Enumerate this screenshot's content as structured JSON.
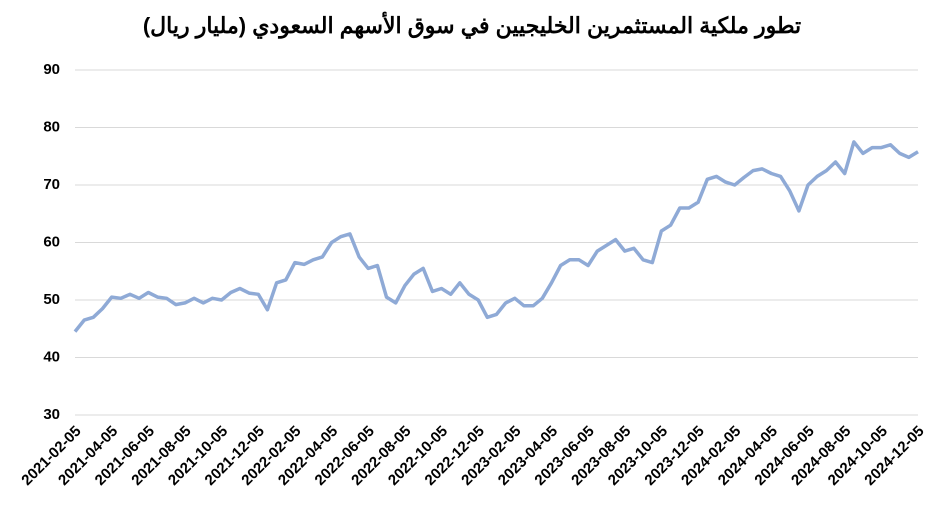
{
  "chart_data": {
    "type": "line",
    "title": "تطور ملكية المستثمرين الخليجيين في سوق الأسهم السعودي (مليار ريال)",
    "categories": [
      "2021-02-05",
      null,
      null,
      null,
      "2021-04-05",
      null,
      null,
      null,
      "2021-06-05",
      null,
      null,
      null,
      "2021-08-05",
      null,
      null,
      null,
      "2021-10-05",
      null,
      null,
      null,
      "2021-12-05",
      null,
      null,
      null,
      "2022-02-05",
      null,
      null,
      null,
      "2022-04-05",
      null,
      null,
      null,
      "2022-06-05",
      null,
      null,
      null,
      "2022-08-05",
      null,
      null,
      null,
      "2022-10-05",
      null,
      null,
      null,
      "2022-12-05",
      null,
      null,
      null,
      "2023-02-05",
      null,
      null,
      null,
      "2023-04-05",
      null,
      null,
      null,
      "2023-06-05",
      null,
      null,
      null,
      "2023-08-05",
      null,
      null,
      null,
      "2023-10-05",
      null,
      null,
      null,
      "2023-12-05",
      null,
      null,
      null,
      "2024-02-05",
      null,
      null,
      null,
      "2024-04-05",
      null,
      null,
      null,
      "2024-06-05",
      null,
      null,
      null,
      "2024-08-05",
      null,
      null,
      null,
      "2024-10-05",
      null,
      null,
      null,
      "2024-12-05"
    ],
    "series": [
      {
        "color": "#8faad6",
        "values": [
          44.5,
          46.5,
          47,
          48.5,
          50.5,
          50.3,
          51,
          50.3,
          51.3,
          50.5,
          50.3,
          49.2,
          49.5,
          50.3,
          49.5,
          50.3,
          50,
          51.3,
          52,
          51.2,
          51,
          48.3,
          53,
          53.5,
          56.5,
          56.2,
          57,
          57.5,
          60,
          61,
          61.5,
          57.5,
          55.5,
          56,
          50.5,
          49.5,
          52.5,
          54.5,
          55.5,
          51.5,
          52,
          51,
          53,
          51,
          50,
          47,
          47.5,
          49.5,
          50.3,
          49,
          49,
          50.3,
          53,
          56,
          57,
          57,
          56,
          58.5,
          59.5,
          60.5,
          58.5,
          59,
          57,
          56.5,
          62,
          63,
          66,
          66,
          67,
          71,
          71.5,
          70.5,
          70,
          71.3,
          72.5,
          72.8,
          72,
          71.5,
          69,
          65.5,
          70,
          71.5,
          72.5,
          74,
          72,
          77.5,
          75.5,
          76.5,
          76.5,
          77,
          75.5,
          74.8,
          75.8
        ]
      }
    ],
    "ylim": [
      30,
      90
    ],
    "yticks": [
      30,
      40,
      50,
      60,
      70,
      80,
      90
    ],
    "grid": true
  }
}
